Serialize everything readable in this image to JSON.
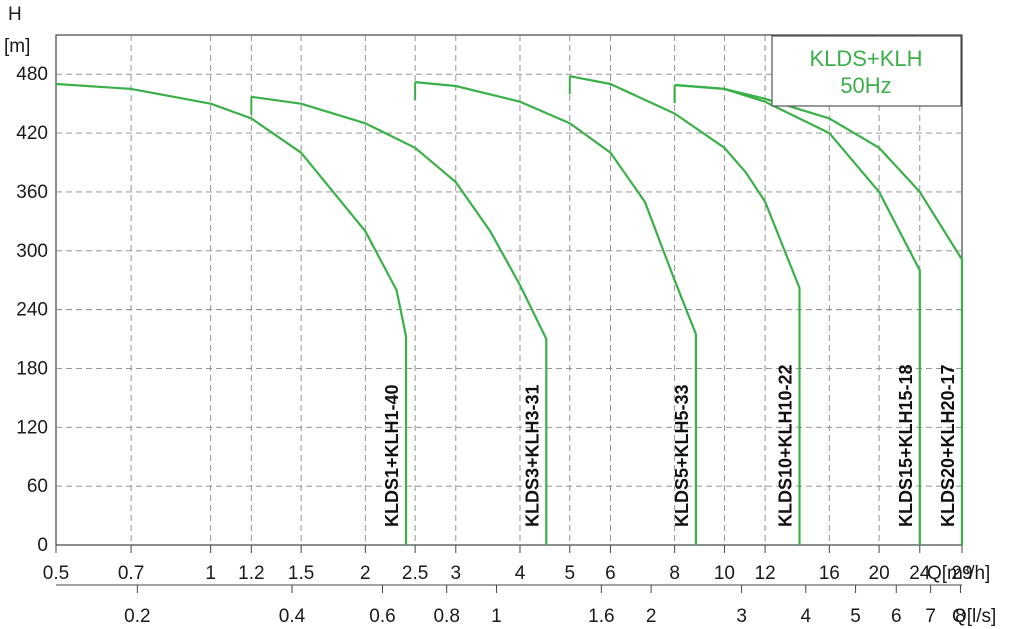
{
  "chart_data": {
    "type": "line",
    "y_axis": {
      "label": "H",
      "unit": "[m]",
      "min": 0,
      "max": 520,
      "ticks": [
        0,
        60,
        120,
        180,
        240,
        300,
        360,
        420,
        480
      ]
    },
    "x_axis": {
      "scale": "log",
      "min": 0.5,
      "max": 29,
      "unit": "Q[m³/h]",
      "ticks": [
        0.5,
        0.7,
        1,
        1.2,
        1.5,
        2,
        2.5,
        3,
        4,
        5,
        6,
        8,
        10,
        12,
        16,
        20,
        24,
        29
      ],
      "tick_labels": [
        "0.5",
        "0.7",
        "1",
        "1.2",
        "1.5",
        "2",
        "2.5",
        "3",
        "4",
        "5",
        "6",
        "8",
        "10",
        "12",
        "16",
        "20",
        "24",
        "29"
      ]
    },
    "x_axis_secondary": {
      "unit": "Q[l/s]",
      "ticks": [
        0.2,
        0.4,
        0.6,
        0.8,
        1,
        1.6,
        2,
        3,
        4,
        5,
        6,
        7,
        8
      ],
      "tick_labels": [
        "0.2",
        "0.4",
        "0.6",
        "0.8",
        "1",
        "1.6",
        "2",
        "3",
        "4",
        "5",
        "6",
        "7",
        "8"
      ]
    },
    "grid": true,
    "legend": {
      "position": "top-right",
      "lines": [
        "KLDS+KLH",
        "50Hz"
      ]
    },
    "series_color": "#3bb04a",
    "series": [
      {
        "name": "KLDS1+KLH1-40",
        "x": [
          0.5,
          0.7,
          1,
          1.2,
          1.5,
          2,
          2.3,
          2.4
        ],
        "y": [
          470,
          465,
          450,
          435,
          400,
          320,
          260,
          213
        ]
      },
      {
        "name": "KLDS3+KLH3-31",
        "x": [
          1.2,
          1.5,
          2,
          2.5,
          3,
          3.5,
          4,
          4.5
        ],
        "y": [
          457,
          450,
          430,
          405,
          370,
          320,
          265,
          210
        ]
      },
      {
        "name": "KLDS5+KLH5-33",
        "x": [
          2.5,
          3,
          4,
          5,
          6,
          7,
          8,
          8.8
        ],
        "y": [
          472,
          468,
          452,
          430,
          400,
          350,
          270,
          215
        ]
      },
      {
        "name": "KLDS10+KLH10-22",
        "x": [
          5,
          6,
          8,
          10,
          11,
          12,
          14
        ],
        "y": [
          478,
          470,
          440,
          405,
          380,
          350,
          262
        ]
      },
      {
        "name": "KLDS15+KLH15-18",
        "x": [
          8,
          10,
          12,
          16,
          20,
          24
        ],
        "y": [
          469,
          465,
          452,
          420,
          360,
          280
        ]
      },
      {
        "name": "KLDS20+KLH20-17",
        "x": [
          8,
          10,
          12,
          16,
          20,
          24,
          29
        ],
        "y": [
          469,
          465,
          455,
          435,
          405,
          360,
          291
        ]
      }
    ]
  }
}
